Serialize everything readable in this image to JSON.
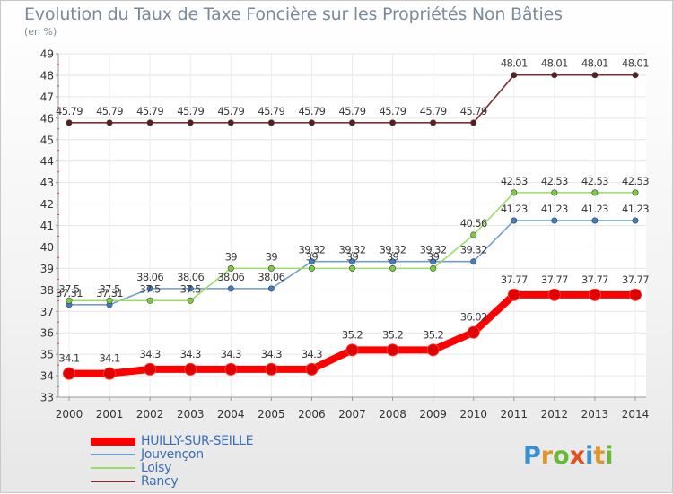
{
  "title": "Evolution du Taux de Taxe Foncière sur les Propriétés Non Bâties",
  "unit_label": "(en %)",
  "brand": "Proxiti",
  "chart_data": {
    "type": "line",
    "title": "Evolution du Taux de Taxe Foncière sur les Propriétés Non Bâties",
    "ylabel": "(en %)",
    "xlabel": "",
    "ylim": [
      33,
      49
    ],
    "yticks": [
      33,
      34,
      35,
      36,
      37,
      38,
      39,
      40,
      41,
      42,
      43,
      44,
      45,
      46,
      47,
      48,
      49
    ],
    "categories": [
      "2000",
      "2001",
      "2002",
      "2003",
      "2004",
      "2005",
      "2006",
      "2007",
      "2008",
      "2009",
      "2010",
      "2011",
      "2012",
      "2013",
      "2014"
    ],
    "series": [
      {
        "name": "HUILLY-SUR-SEILLE",
        "color": "#ff0000",
        "highlight": true,
        "values": [
          34.1,
          34.1,
          34.3,
          34.3,
          34.3,
          34.3,
          34.3,
          35.2,
          35.2,
          35.2,
          36.02,
          37.77,
          37.77,
          37.77,
          37.77
        ],
        "labels": [
          "34.1",
          "34.1",
          "34.3",
          "34.3",
          "34.3",
          "34.3",
          "34.3",
          "35.2",
          "35.2",
          "35.2",
          "36.02",
          "37.77",
          "37.77",
          "37.77",
          "37.77"
        ]
      },
      {
        "name": "Jouvençon",
        "color": "#6f9fcc",
        "point_color": "#3f7fc0",
        "values": [
          37.31,
          37.31,
          38.06,
          38.06,
          38.06,
          38.06,
          39.32,
          39.32,
          39.32,
          39.32,
          39.32,
          41.23,
          41.23,
          41.23,
          41.23
        ],
        "labels": [
          "37.31",
          "37.31",
          "38.06",
          "38.06",
          "38.06",
          "38.06",
          "39.32",
          "39.32",
          "39.32",
          "39.32",
          "39.32",
          "41.23",
          "41.23",
          "41.23",
          "41.23"
        ]
      },
      {
        "name": "Loisy",
        "color": "#99dd66",
        "point_color": "#7acc40",
        "values": [
          37.5,
          37.5,
          37.5,
          37.5,
          39,
          39,
          39,
          39,
          39,
          39,
          40.56,
          42.53,
          42.53,
          42.53,
          42.53
        ],
        "labels": [
          "37.5",
          "37.5",
          "37.5",
          "37.5",
          "39",
          "39",
          "39",
          "39",
          "39",
          "39",
          "40.56",
          "42.53",
          "42.53",
          "42.53",
          "42.53"
        ]
      },
      {
        "name": "Rancy",
        "color": "#7a3030",
        "point_color": "#5a1e1e",
        "values": [
          45.79,
          45.79,
          45.79,
          45.79,
          45.79,
          45.79,
          45.79,
          45.79,
          45.79,
          45.79,
          45.79,
          48.01,
          48.01,
          48.01,
          48.01
        ],
        "labels": [
          "45.79",
          "45.79",
          "45.79",
          "45.79",
          "45.79",
          "45.79",
          "45.79",
          "45.79",
          "45.79",
          "45.79",
          "45.79",
          "48.01",
          "48.01",
          "48.01",
          "48.01"
        ]
      }
    ],
    "grid": true,
    "legend_position": "bottom-left"
  }
}
